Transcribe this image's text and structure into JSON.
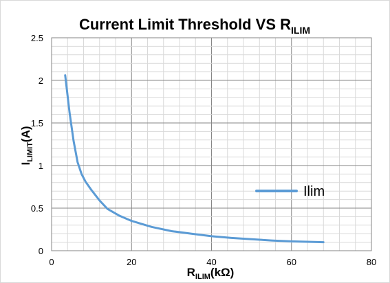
{
  "chart_data": {
    "type": "line",
    "title": {
      "main": "Current Limit Threshold VS R",
      "subscript": "ILIM"
    },
    "xlabel": {
      "main": "R",
      "subscript": "ILIM",
      "suffix": "(kΩ)"
    },
    "ylabel": {
      "main": "I",
      "subscript": "LIMIT",
      "suffix": "(A)"
    },
    "xlim": [
      0,
      80
    ],
    "ylim": [
      0,
      2.5
    ],
    "x_ticks": [
      0,
      20,
      40,
      60,
      80
    ],
    "x_tick_labels": [
      "0",
      "20",
      "40",
      "60",
      "80"
    ],
    "y_ticks": [
      0,
      0.5,
      1,
      1.5,
      2,
      2.5
    ],
    "y_tick_labels": [
      "0",
      "0.5",
      "1",
      "1.5",
      "2",
      "2.5"
    ],
    "x_minor_step": 4,
    "y_minor_step": 0.1,
    "grid": true,
    "legend": {
      "position": "right",
      "entries": [
        "Ilim"
      ]
    },
    "series": [
      {
        "name": "Ilim",
        "color": "#5b9bd5",
        "x": [
          3.4,
          4.5,
          5.5,
          6.5,
          7.5,
          8.5,
          10,
          12,
          14,
          17,
          20,
          25,
          30,
          35,
          40,
          45,
          50,
          55,
          60,
          68
        ],
        "y": [
          2.06,
          1.62,
          1.29,
          1.04,
          0.9,
          0.81,
          0.71,
          0.59,
          0.49,
          0.41,
          0.35,
          0.28,
          0.23,
          0.2,
          0.17,
          0.15,
          0.135,
          0.12,
          0.11,
          0.1
        ]
      }
    ]
  }
}
